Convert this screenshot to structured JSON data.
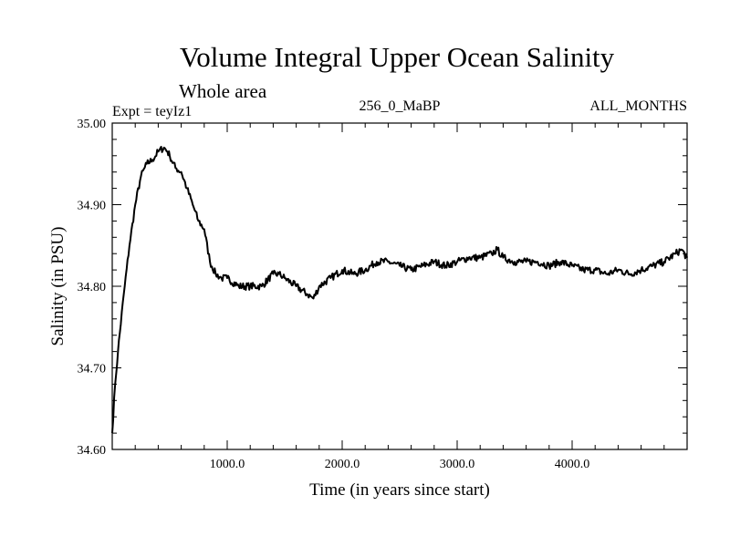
{
  "chart_data": {
    "type": "line",
    "title": "Volume Integral Upper Ocean Salinity",
    "subtitle": "Whole area",
    "left_label": "Expt = teyIz1",
    "center_label": "256_0_MaBP",
    "right_label": "ALL_MONTHS",
    "xlabel": "Time (in years since start)",
    "ylabel": "Salinity (in PSU)",
    "xlim": [
      0,
      5000
    ],
    "ylim": [
      34.6,
      35.0
    ],
    "x_ticks": [
      1000,
      2000,
      3000,
      4000
    ],
    "x_tick_labels": [
      "1000.0",
      "2000.0",
      "3000.0",
      "4000.0"
    ],
    "y_ticks": [
      34.6,
      34.7,
      34.8,
      34.9,
      35.0
    ],
    "y_tick_labels": [
      "34.60",
      "34.70",
      "34.80",
      "34.90",
      "35.00"
    ],
    "grid": false,
    "series": [
      {
        "name": "salinity",
        "x": [
          0,
          25,
          50,
          100,
          150,
          200,
          250,
          300,
          350,
          400,
          450,
          480,
          500,
          550,
          600,
          650,
          700,
          750,
          800,
          850,
          900,
          950,
          1000,
          1100,
          1200,
          1300,
          1400,
          1450,
          1500,
          1600,
          1700,
          1750,
          1800,
          1900,
          2000,
          2100,
          2200,
          2300,
          2400,
          2500,
          2600,
          2700,
          2800,
          2900,
          3000,
          3100,
          3200,
          3300,
          3350,
          3400,
          3500,
          3600,
          3700,
          3800,
          3900,
          4000,
          4100,
          4200,
          4300,
          4400,
          4500,
          4600,
          4700,
          4800,
          4900,
          4950,
          5000
        ],
        "values": [
          34.62,
          34.68,
          34.72,
          34.79,
          34.85,
          34.9,
          34.935,
          34.95,
          34.955,
          34.965,
          34.97,
          34.965,
          34.96,
          34.945,
          34.94,
          34.92,
          34.9,
          34.88,
          34.87,
          34.83,
          34.815,
          34.81,
          34.81,
          34.8,
          34.8,
          34.8,
          34.815,
          34.815,
          34.81,
          34.8,
          34.79,
          34.785,
          34.8,
          34.81,
          34.82,
          34.815,
          34.82,
          34.83,
          34.83,
          34.825,
          34.82,
          34.825,
          34.83,
          34.825,
          34.83,
          34.835,
          34.835,
          34.84,
          34.845,
          34.835,
          34.83,
          34.83,
          34.83,
          34.825,
          34.83,
          34.825,
          34.82,
          34.82,
          34.815,
          34.82,
          34.815,
          34.82,
          34.825,
          34.83,
          34.84,
          34.845,
          34.835
        ]
      }
    ]
  }
}
